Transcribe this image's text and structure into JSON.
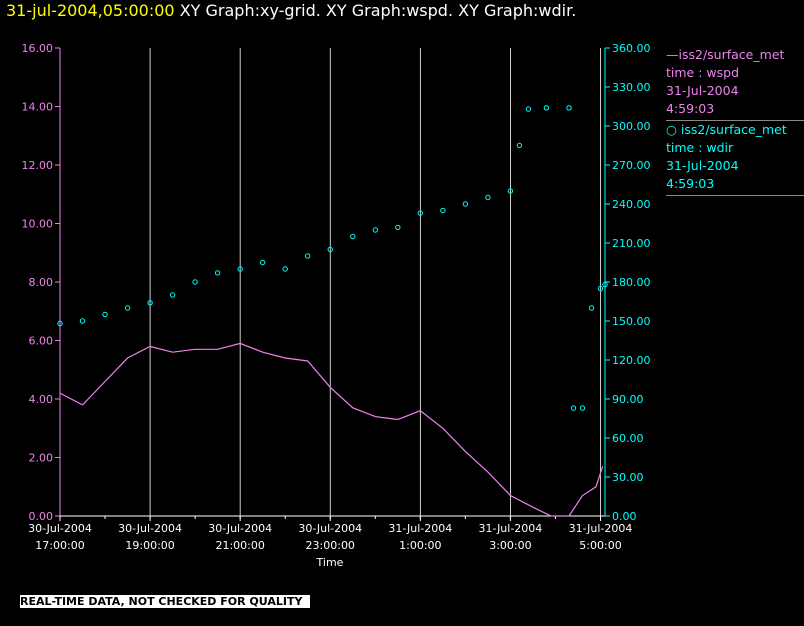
{
  "header": {
    "timestamp": "31-jul-2004,05:00:00",
    "titles": "XY Graph:xy-grid.  XY Graph:wspd.  XY Graph:wdir."
  },
  "legend": [
    {
      "line1": "—iss2/surface_met",
      "line2": "time : wspd",
      "line3": "31-Jul-2004",
      "line4": "4:59:03",
      "color": "#ee82ee"
    },
    {
      "line1": "○ iss2/surface_met",
      "line2": "time : wdir",
      "line3": "31-Jul-2004",
      "line4": "4:59:03",
      "color": "#00ffff"
    }
  ],
  "footer": "REAL-TIME DATA, NOT CHECKED FOR QUALITY",
  "chart_data": {
    "type": "line",
    "xlabel": "Time",
    "x_ticks": [
      {
        "date": "30-Jul-2004",
        "time": "17:00:00",
        "hour": 17
      },
      {
        "date": "30-Jul-2004",
        "time": "19:00:00",
        "hour": 19
      },
      {
        "date": "30-Jul-2004",
        "time": "21:00:00",
        "hour": 21
      },
      {
        "date": "30-Jul-2004",
        "time": "23:00:00",
        "hour": 23
      },
      {
        "date": "31-Jul-2004",
        "time": "1:00:00",
        "hour": 25
      },
      {
        "date": "31-Jul-2004",
        "time": "3:00:00",
        "hour": 27
      },
      {
        "date": "31-Jul-2004",
        "time": "5:00:00",
        "hour": 29
      }
    ],
    "xlim_hours": [
      17,
      29.1
    ],
    "left_axis": {
      "ylim": [
        0,
        16
      ],
      "ticks": [
        "0.00",
        "2.00",
        "4.00",
        "6.00",
        "8.00",
        "10.00",
        "12.00",
        "14.00",
        "16.00"
      ],
      "color": "#ee82ee"
    },
    "right_axis": {
      "ylim": [
        0,
        360
      ],
      "ticks": [
        "0.00",
        "30.00",
        "60.00",
        "90.00",
        "120.00",
        "150.00",
        "180.00",
        "210.00",
        "240.00",
        "270.00",
        "300.00",
        "330.00",
        "360.00"
      ],
      "color": "#00ffff"
    },
    "grid": "vertical",
    "series": [
      {
        "name": "iss2/surface_met time : wspd",
        "axis": "left",
        "style": "line",
        "color": "#ee82ee",
        "points": [
          [
            17.0,
            4.2
          ],
          [
            17.5,
            3.8
          ],
          [
            18.0,
            4.6
          ],
          [
            18.5,
            5.4
          ],
          [
            19.0,
            5.8
          ],
          [
            19.5,
            5.6
          ],
          [
            20.0,
            5.7
          ],
          [
            20.5,
            5.7
          ],
          [
            21.0,
            5.9
          ],
          [
            21.5,
            5.6
          ],
          [
            22.0,
            5.4
          ],
          [
            22.5,
            5.3
          ],
          [
            23.0,
            4.4
          ],
          [
            23.5,
            3.7
          ],
          [
            24.0,
            3.4
          ],
          [
            24.5,
            3.3
          ],
          [
            25.0,
            3.6
          ],
          [
            25.5,
            3.0
          ],
          [
            26.0,
            2.2
          ],
          [
            26.5,
            1.5
          ],
          [
            27.0,
            0.7
          ],
          [
            27.5,
            0.3
          ],
          [
            27.9,
            0.0
          ],
          [
            28.3,
            0.0
          ],
          [
            28.6,
            0.7
          ],
          [
            28.9,
            1.0
          ],
          [
            29.05,
            1.7
          ]
        ]
      },
      {
        "name": "iss2/surface_met time : wdir",
        "axis": "right",
        "style": "scatter",
        "color": "#00ffff",
        "points": [
          [
            17.0,
            148
          ],
          [
            17.5,
            150
          ],
          [
            18.0,
            155
          ],
          [
            18.5,
            160
          ],
          [
            19.0,
            164
          ],
          [
            19.5,
            170
          ],
          [
            20.0,
            180
          ],
          [
            20.5,
            187
          ],
          [
            21.0,
            190
          ],
          [
            21.5,
            195
          ],
          [
            22.0,
            190
          ],
          [
            22.5,
            200
          ],
          [
            23.0,
            205
          ],
          [
            23.5,
            215
          ],
          [
            24.0,
            220
          ],
          [
            24.5,
            222
          ],
          [
            25.0,
            233
          ],
          [
            25.5,
            235
          ],
          [
            26.0,
            240
          ],
          [
            26.5,
            245
          ],
          [
            27.0,
            250
          ],
          [
            27.2,
            285
          ],
          [
            27.4,
            313
          ],
          [
            27.8,
            314
          ],
          [
            28.3,
            314
          ],
          [
            28.4,
            83
          ],
          [
            28.6,
            83
          ],
          [
            28.8,
            160
          ],
          [
            29.0,
            175
          ],
          [
            29.1,
            178
          ]
        ]
      }
    ]
  }
}
